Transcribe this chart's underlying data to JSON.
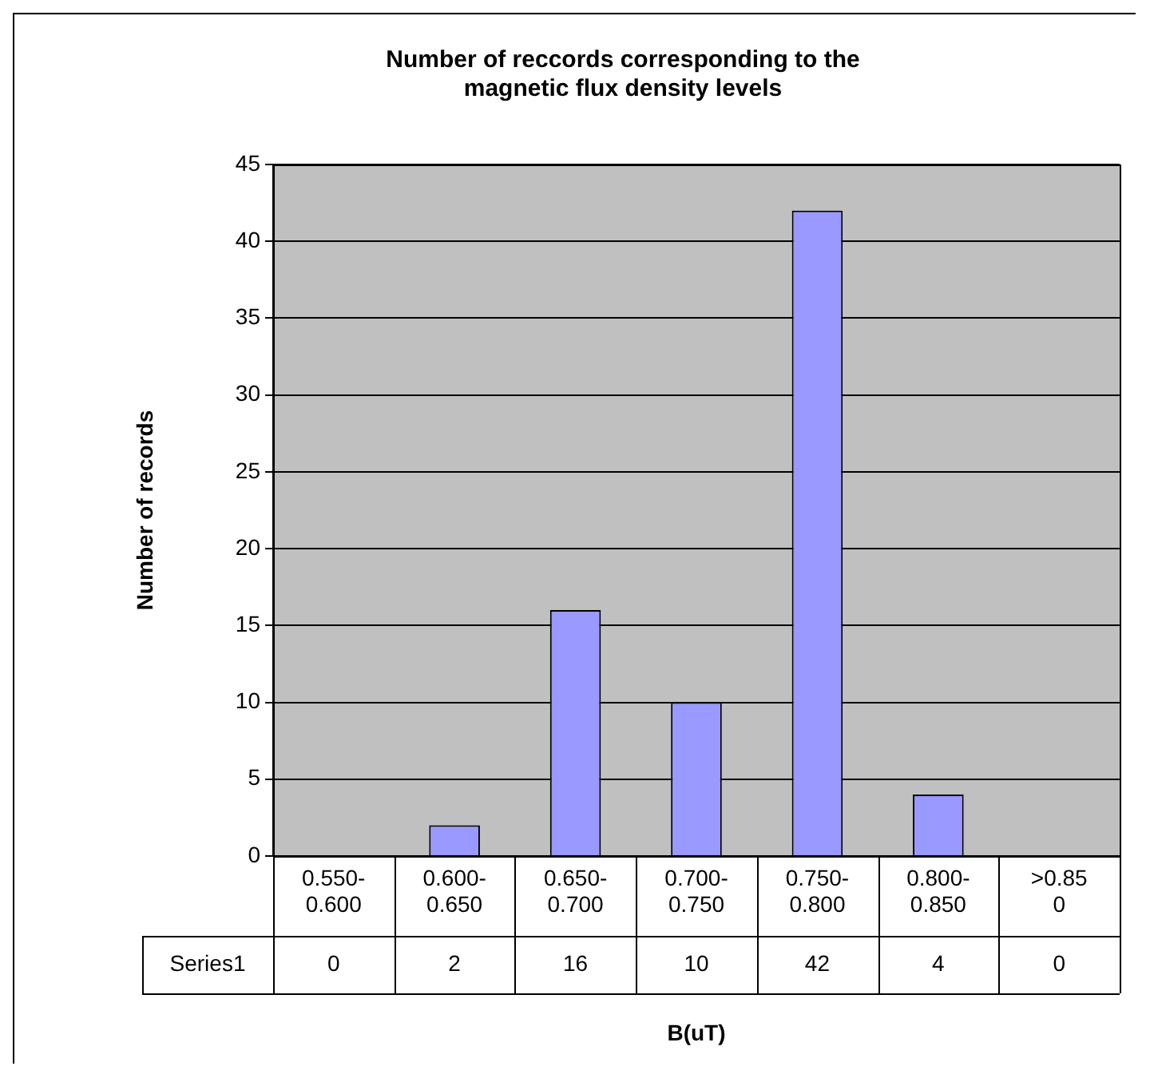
{
  "chart_data": {
    "type": "bar",
    "title": "Number of reccords corresponding to the magnetic flux density levels",
    "xlabel": "B(uT)",
    "ylabel": "Number of records",
    "categories": [
      "0.550-0.600",
      "0.600-0.650",
      "0.650-0.700",
      "0.700-0.750",
      "0.750-0.800",
      "0.800-0.850",
      ">0.850"
    ],
    "series": [
      {
        "name": "Series1",
        "color": "#9999ff",
        "values": [
          0,
          2,
          16,
          10,
          42,
          4,
          0
        ]
      }
    ],
    "ylim": [
      0,
      45
    ],
    "yticks": [
      0,
      5,
      10,
      15,
      20,
      25,
      30,
      35,
      40,
      45
    ],
    "grid": "y",
    "legend": false,
    "data_labels": true
  }
}
